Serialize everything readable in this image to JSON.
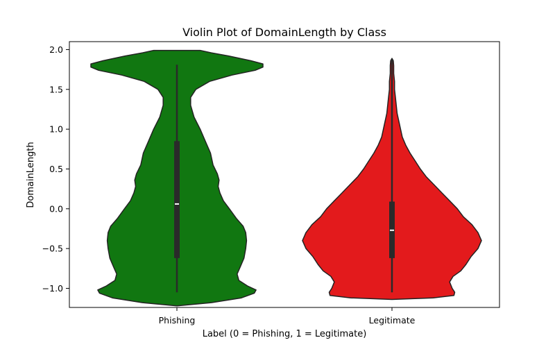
{
  "chart_data": {
    "type": "violin",
    "title": "Violin Plot of DomainLength by Class",
    "xlabel": "Label (0 = Phishing, 1 = Legitimate)",
    "ylabel": "DomainLength",
    "ylim": [
      -1.24,
      2.1
    ],
    "yticks": [
      -1.0,
      -0.5,
      0.0,
      0.5,
      1.0,
      1.5,
      2.0
    ],
    "ytick_labels": [
      "−1.0",
      "−0.5",
      "0.0",
      "0.5",
      "1.0",
      "1.5",
      "2.0"
    ],
    "grid": false,
    "categories": [
      "Phishing",
      "Legitimate"
    ],
    "series": [
      {
        "color": "#117711",
        "min": -1.05,
        "q1": -0.62,
        "median": 0.06,
        "q3": 0.85,
        "max": 1.81,
        "density": [
          [
            -1.22,
            0.0
          ],
          [
            -1.18,
            0.4
          ],
          [
            -1.12,
            0.75
          ],
          [
            -1.06,
            0.9
          ],
          [
            -1.02,
            0.92
          ],
          [
            -0.97,
            0.82
          ],
          [
            -0.9,
            0.72
          ],
          [
            -0.82,
            0.7
          ],
          [
            -0.72,
            0.74
          ],
          [
            -0.62,
            0.78
          ],
          [
            -0.5,
            0.8
          ],
          [
            -0.4,
            0.81
          ],
          [
            -0.3,
            0.8
          ],
          [
            -0.22,
            0.77
          ],
          [
            -0.12,
            0.69
          ],
          [
            0.0,
            0.61
          ],
          [
            0.1,
            0.54
          ],
          [
            0.2,
            0.5
          ],
          [
            0.28,
            0.48
          ],
          [
            0.36,
            0.49
          ],
          [
            0.44,
            0.47
          ],
          [
            0.55,
            0.42
          ],
          [
            0.7,
            0.39
          ],
          [
            0.85,
            0.33
          ],
          [
            1.0,
            0.27
          ],
          [
            1.15,
            0.2
          ],
          [
            1.3,
            0.16
          ],
          [
            1.4,
            0.16
          ],
          [
            1.5,
            0.22
          ],
          [
            1.6,
            0.38
          ],
          [
            1.68,
            0.64
          ],
          [
            1.74,
            0.91
          ],
          [
            1.78,
            1.0
          ],
          [
            1.82,
            1.0
          ],
          [
            1.86,
            0.86
          ],
          [
            1.92,
            0.6
          ],
          [
            1.96,
            0.4
          ],
          [
            1.99,
            0.27
          ]
        ]
      },
      {
        "color": "#e31a1c",
        "min": -1.05,
        "q1": -0.62,
        "median": -0.27,
        "q3": 0.09,
        "max": 1.88,
        "density": [
          [
            -1.14,
            0.0
          ],
          [
            -1.12,
            0.48
          ],
          [
            -1.09,
            0.72
          ],
          [
            -1.05,
            0.73
          ],
          [
            -1.0,
            0.7
          ],
          [
            -0.92,
            0.67
          ],
          [
            -0.85,
            0.71
          ],
          [
            -0.78,
            0.8
          ],
          [
            -0.7,
            0.86
          ],
          [
            -0.6,
            0.92
          ],
          [
            -0.5,
            1.0
          ],
          [
            -0.4,
            1.04
          ],
          [
            -0.3,
            1.0
          ],
          [
            -0.2,
            0.93
          ],
          [
            -0.1,
            0.83
          ],
          [
            0.0,
            0.76
          ],
          [
            0.1,
            0.67
          ],
          [
            0.2,
            0.58
          ],
          [
            0.3,
            0.49
          ],
          [
            0.4,
            0.4
          ],
          [
            0.5,
            0.33
          ],
          [
            0.6,
            0.27
          ],
          [
            0.7,
            0.21
          ],
          [
            0.8,
            0.16
          ],
          [
            0.9,
            0.12
          ],
          [
            1.0,
            0.1
          ],
          [
            1.1,
            0.08
          ],
          [
            1.2,
            0.06
          ],
          [
            1.3,
            0.05
          ],
          [
            1.4,
            0.04
          ],
          [
            1.5,
            0.03
          ],
          [
            1.6,
            0.03
          ],
          [
            1.7,
            0.02
          ],
          [
            1.8,
            0.02
          ],
          [
            1.86,
            0.015
          ],
          [
            1.89,
            0.0
          ]
        ]
      }
    ]
  }
}
